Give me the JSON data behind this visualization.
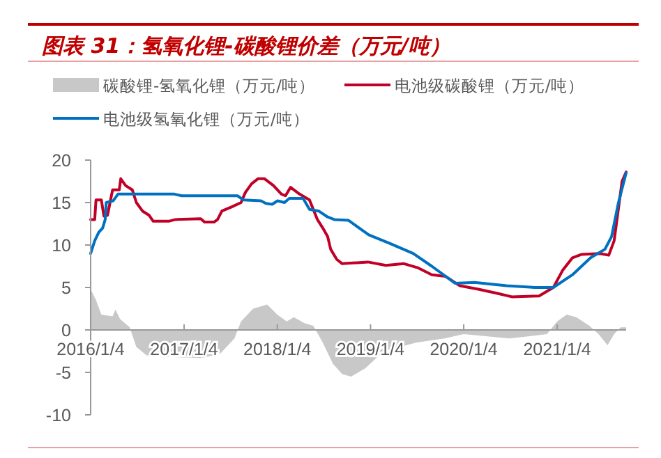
{
  "chart_data": {
    "type": "line",
    "title": "图表 31：氢氧化锂-碳酸锂价差（万元/吨）",
    "legend": "top",
    "xlim": [
      "2016-01-04",
      "2021-10-01"
    ],
    "xticks": [
      {
        "value": "2016-01-04",
        "label": "2016/1/4"
      },
      {
        "value": "2017-01-04",
        "label": "2017/1/4"
      },
      {
        "value": "2018-01-04",
        "label": "2018/1/4"
      },
      {
        "value": "2019-01-04",
        "label": "2019/1/4"
      },
      {
        "value": "2020-01-04",
        "label": "2020/1/4"
      },
      {
        "value": "2021-01-04",
        "label": "2021/1/4"
      }
    ],
    "ylim": [
      -10,
      20
    ],
    "yticks": [
      -10,
      -5,
      0,
      5,
      10,
      15,
      20
    ],
    "grid": false,
    "series": [
      {
        "name": "碳酸锂-氢氧化锂（万元/吨）",
        "type": "area",
        "color": "#c8c8c8",
        "x": [
          "2016-01-04",
          "2016-01-25",
          "2016-02-15",
          "2016-03-30",
          "2016-04-10",
          "2016-04-28",
          "2016-06-05",
          "2016-07-01",
          "2016-08-10",
          "2016-11-25",
          "2017-03-15",
          "2017-05-25",
          "2017-07-20",
          "2017-08-15",
          "2017-10-01",
          "2017-11-25",
          "2018-01-04",
          "2018-02-10",
          "2018-03-10",
          "2018-04-20",
          "2018-05-25",
          "2018-07-01",
          "2018-08-10",
          "2018-09-15",
          "2018-10-20",
          "2018-12-15",
          "2019-02-25",
          "2019-07-01",
          "2019-10-20",
          "2020-01-04",
          "2020-07-01",
          "2020-11-25",
          "2021-01-04",
          "2021-02-10",
          "2021-03-20",
          "2021-05-10",
          "2021-06-15",
          "2021-07-20",
          "2021-08-15",
          "2021-09-10",
          "2021-10-01"
        ],
        "values": [
          4.8,
          3.5,
          1.8,
          1.6,
          2.4,
          1.3,
          0.3,
          -2.0,
          -3.0,
          -3.2,
          -3.3,
          -2.8,
          -1.0,
          1.0,
          2.5,
          3.0,
          1.8,
          1.0,
          1.5,
          0.8,
          0.5,
          -1.5,
          -4.0,
          -5.2,
          -5.5,
          -4.5,
          -2.5,
          -1.5,
          -1.0,
          -0.5,
          -1.0,
          -0.5,
          1.0,
          1.8,
          1.5,
          0.5,
          -0.5,
          -1.8,
          -0.5,
          0.3,
          0.3
        ]
      },
      {
        "name": "电池级碳酸锂（万元/吨）",
        "type": "line",
        "color": "#c00026",
        "x": [
          "2016-01-04",
          "2016-01-20",
          "2016-01-25",
          "2016-02-15",
          "2016-02-25",
          "2016-03-10",
          "2016-03-20",
          "2016-03-30",
          "2016-04-25",
          "2016-05-01",
          "2016-05-20",
          "2016-06-15",
          "2016-07-01",
          "2016-07-25",
          "2016-08-20",
          "2016-09-05",
          "2016-11-05",
          "2016-12-01",
          "2017-03-10",
          "2017-03-25",
          "2017-05-01",
          "2017-05-15",
          "2017-06-01",
          "2017-07-10",
          "2017-08-15",
          "2017-09-01",
          "2017-09-25",
          "2017-10-20",
          "2017-11-15",
          "2017-12-20",
          "2018-01-20",
          "2018-02-05",
          "2018-02-25",
          "2018-04-01",
          "2018-05-10",
          "2018-06-10",
          "2018-07-01",
          "2018-07-20",
          "2018-08-01",
          "2018-08-25",
          "2018-09-15",
          "2018-12-25",
          "2019-03-05",
          "2019-05-15",
          "2019-07-10",
          "2019-09-01",
          "2019-10-25",
          "2019-12-20",
          "2020-03-01",
          "2020-05-15",
          "2020-07-10",
          "2020-10-25",
          "2020-12-20",
          "2021-01-25",
          "2021-03-05",
          "2021-04-10",
          "2021-06-20",
          "2021-07-25",
          "2021-08-15",
          "2021-09-15",
          "2021-10-01"
        ],
        "values": [
          13.0,
          13.0,
          15.3,
          15.3,
          13.4,
          13.5,
          15.0,
          16.5,
          16.5,
          17.8,
          17.0,
          16.5,
          15.0,
          14.0,
          13.5,
          12.8,
          12.8,
          13.0,
          13.1,
          12.7,
          12.7,
          13.0,
          14.0,
          14.5,
          15.0,
          16.2,
          17.2,
          17.8,
          17.8,
          17.0,
          16.0,
          15.8,
          16.8,
          16.0,
          15.3,
          13.0,
          12.0,
          11.0,
          9.5,
          8.3,
          7.8,
          8.0,
          7.6,
          7.8,
          7.3,
          6.5,
          6.3,
          5.2,
          4.8,
          4.3,
          3.9,
          4.0,
          5.0,
          7.0,
          8.5,
          8.9,
          9.0,
          8.8,
          10.5,
          17.5,
          18.6
        ]
      },
      {
        "name": "电池级氢氧化锂（万元/吨）",
        "type": "line",
        "color": "#0070c0",
        "x": [
          "2016-01-04",
          "2016-01-20",
          "2016-02-05",
          "2016-02-20",
          "2016-03-01",
          "2016-03-05",
          "2016-04-01",
          "2016-04-20",
          "2016-11-25",
          "2016-12-25",
          "2017-08-01",
          "2017-08-25",
          "2017-11-01",
          "2017-11-20",
          "2017-12-15",
          "2018-01-05",
          "2018-02-01",
          "2018-02-20",
          "2018-04-15",
          "2018-05-10",
          "2018-06-15",
          "2018-07-20",
          "2018-08-15",
          "2018-10-10",
          "2018-12-28",
          "2019-03-20",
          "2019-06-20",
          "2019-09-01",
          "2019-12-01",
          "2020-02-15",
          "2020-06-20",
          "2020-10-10",
          "2020-12-20",
          "2021-03-05",
          "2021-05-15",
          "2021-07-10",
          "2021-08-05",
          "2021-09-01",
          "2021-10-01"
        ],
        "values": [
          9.0,
          10.5,
          11.5,
          12.0,
          13.0,
          15.0,
          15.2,
          16.0,
          16.0,
          15.8,
          15.8,
          15.3,
          15.2,
          14.9,
          14.8,
          15.2,
          15.0,
          15.5,
          15.5,
          14.2,
          14.0,
          13.3,
          13.0,
          12.9,
          11.2,
          10.2,
          9.0,
          7.5,
          5.5,
          5.6,
          5.2,
          5.0,
          5.0,
          6.5,
          8.5,
          9.5,
          11.0,
          15.0,
          18.5
        ]
      }
    ]
  }
}
